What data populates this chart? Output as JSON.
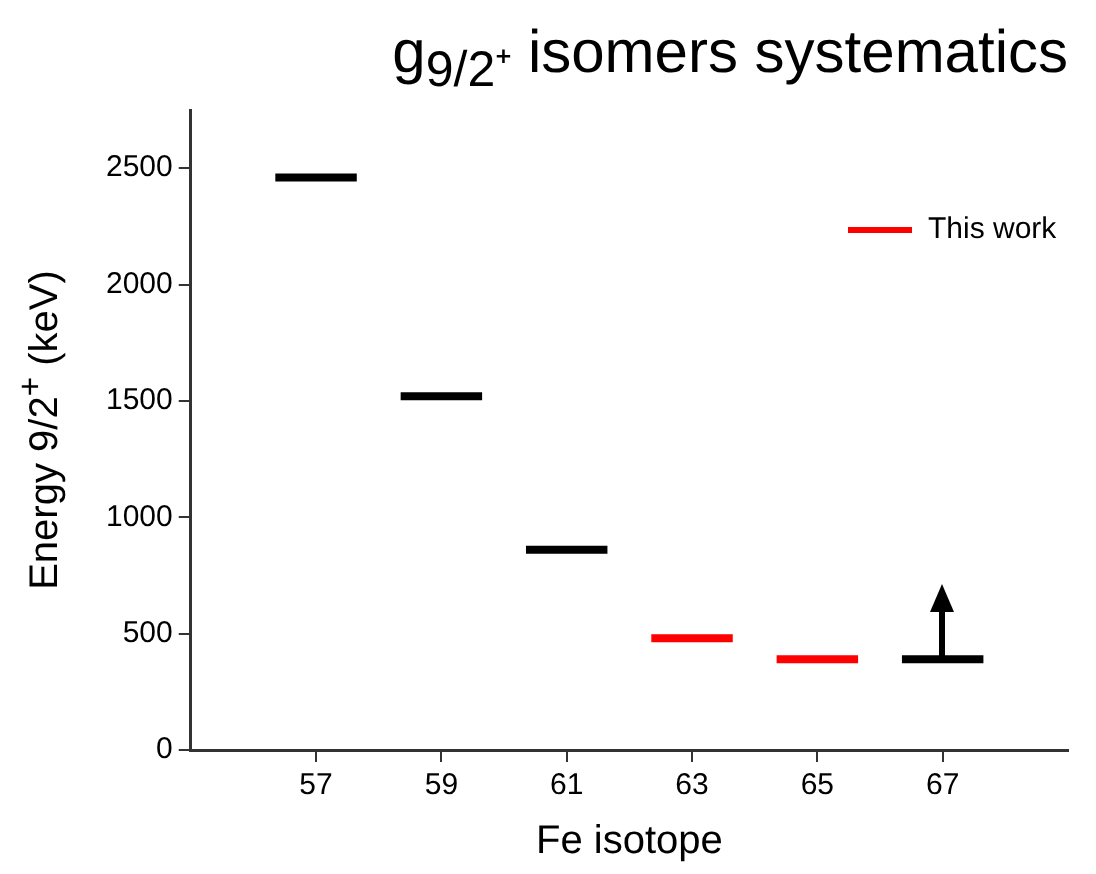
{
  "chart_data": {
    "type": "line",
    "title": "g$_{9/2⁺}$ isomers systematics",
    "xlabel": "Fe isotope",
    "ylabel": "Energy 9/2$^{+}$ (keV)",
    "series": [
      {
        "color": "#000000",
        "x": [
          56.35,
          57.65,
          58,
          58.35,
          59.65,
          60,
          60.35,
          61.65,
          64,
          66.35,
          67.65
        ],
        "values": [
          2460,
          2460,
          null,
          1520,
          1520,
          null,
          860,
          860,
          null,
          390,
          390
        ]
      },
      {
        "name": "This work",
        "color": "#ff0000",
        "x": [
          62.35,
          63.65,
          64,
          64.35,
          65.65
        ],
        "values": [
          480,
          480,
          null,
          390,
          390
        ]
      }
    ],
    "xlim": [
      55,
      69
    ],
    "xticks": [
      57,
      59,
      61,
      63,
      65,
      67
    ],
    "ylim": [
      0,
      2750
    ],
    "yticks": [
      0,
      500,
      1000,
      1500,
      2000,
      2500
    ],
    "grid": false,
    "legend": "top right",
    "marker": "none",
    "line_style": "solid"
  }
}
